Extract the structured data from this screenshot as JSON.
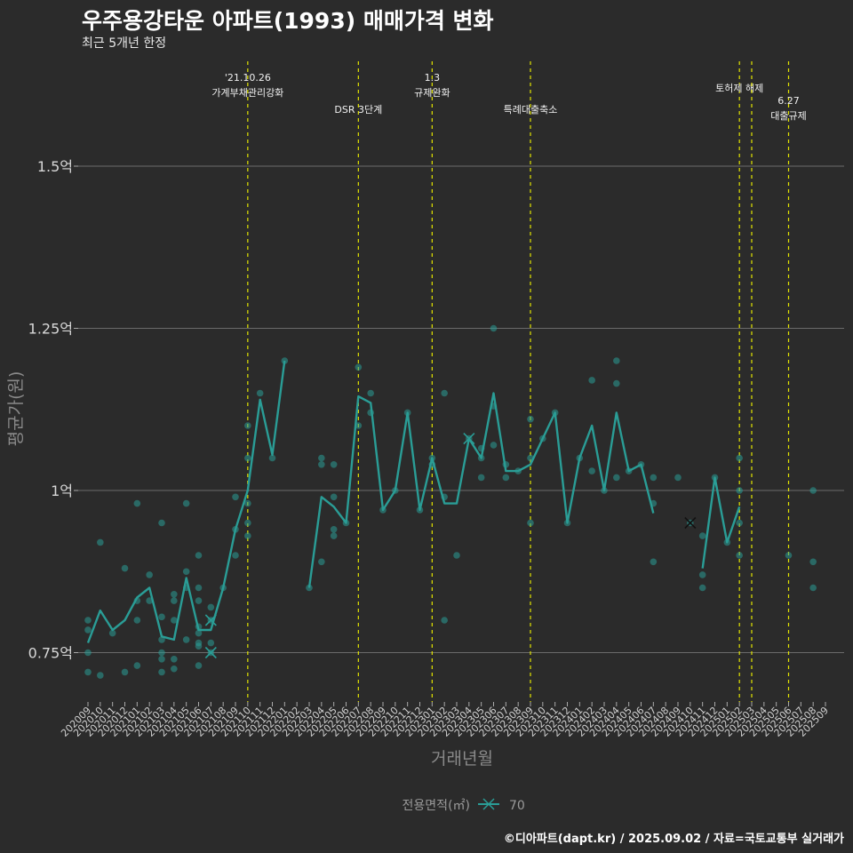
{
  "header": {
    "title": "우주용강타운 아파트(1993) 매매가격 변화",
    "subtitle": "최근 5개년 한정"
  },
  "caption": "©디아파트(dapt.kr) / 2025.09.02 / 자료=국토교통부 실거래가",
  "chart_data": {
    "type": "line",
    "title": "우주용강타운 아파트(1993) 매매가격 변화",
    "subtitle": "최근 5개년 한정",
    "xlabel": "거래년월",
    "ylabel": "평균가(원)",
    "ylim": [
      0.68,
      1.68
    ],
    "y_unit": "억",
    "y_ticks": [
      0.75,
      1.0,
      1.25,
      1.5
    ],
    "y_tick_labels": [
      "0.75억",
      "1억",
      "1.25억",
      "1.5억"
    ],
    "grid": true,
    "legend": {
      "title": "전용면적(㎡)",
      "placement": "bottom",
      "entries": [
        "70"
      ]
    },
    "line_color": "#2a9d96",
    "point_color": "#2a9d96",
    "vline_color": "#e4e600",
    "x_categories": [
      "202009",
      "202010",
      "202011",
      "202012",
      "202101",
      "202102",
      "202103",
      "202104",
      "202105",
      "202106",
      "202107",
      "202108",
      "202109",
      "202110",
      "202111",
      "202112",
      "202201",
      "202202",
      "202203",
      "202204",
      "202205",
      "202206",
      "202207",
      "202208",
      "202209",
      "202210",
      "202211",
      "202212",
      "202301",
      "202302",
      "202303",
      "202304",
      "202305",
      "202306",
      "202307",
      "202308",
      "202309",
      "202310",
      "202311",
      "202312",
      "202401",
      "202402",
      "202403",
      "202404",
      "202405",
      "202406",
      "202407",
      "202408",
      "202409",
      "202410",
      "202411",
      "202412",
      "202501",
      "202502",
      "202503",
      "202504",
      "202505",
      "202506",
      "202507",
      "202508",
      "202509"
    ],
    "x_tick_labels": [
      "202009",
      "202010",
      "202011",
      "202012",
      "202101",
      "202102",
      "202103",
      "202104",
      "202105",
      "202106",
      "202107",
      "202108",
      "202109",
      "202110",
      "202111",
      "202112",
      "202201",
      "202202",
      "202203",
      "202204",
      "202205",
      "202206",
      "202207",
      "202208",
      "202209",
      "202210",
      "202211",
      "202212",
      "202301",
      "202302",
      "202303",
      "202304",
      "202305",
      "202306",
      "202307",
      "202308",
      "202309",
      "202310",
      "202311",
      "202312",
      "202401",
      "202402",
      "202403",
      "202404",
      "202405",
      "202406",
      "202407",
      "202408",
      "202409",
      "202410",
      "202411",
      "202412",
      "202501",
      "202502",
      "202503",
      "202504",
      "202505",
      "202506",
      "202507",
      "202508",
      "202509"
    ],
    "series": [
      {
        "name": "70",
        "line_segments": [
          [
            [
              "202009",
              0.765
            ],
            [
              "202010",
              0.815
            ],
            [
              "202011",
              0.785
            ],
            [
              "202012",
              0.8
            ],
            [
              "202101",
              0.835
            ],
            [
              "202102",
              0.85
            ],
            [
              "202103",
              0.775
            ],
            [
              "202104",
              0.77
            ],
            [
              "202105",
              0.865
            ],
            [
              "202106",
              0.785
            ],
            [
              "202107",
              0.785
            ],
            [
              "202108",
              0.85
            ],
            [
              "202109",
              0.94
            ],
            [
              "202110",
              1.0
            ],
            [
              "202111",
              1.14
            ],
            [
              "202112",
              1.055
            ],
            [
              "202201",
              1.2
            ]
          ],
          [
            [
              "202203",
              0.85
            ],
            [
              "202204",
              0.99
            ],
            [
              "202205",
              0.975
            ],
            [
              "202206",
              0.95
            ],
            [
              "202207",
              1.145
            ],
            [
              "202208",
              1.135
            ],
            [
              "202209",
              0.97
            ],
            [
              "202210",
              1.0
            ],
            [
              "202211",
              1.12
            ],
            [
              "202212",
              0.97
            ],
            [
              "202301",
              1.05
            ],
            [
              "202302",
              0.98
            ],
            [
              "202303",
              0.98
            ],
            [
              "202304",
              1.08
            ],
            [
              "202305",
              1.05
            ],
            [
              "202306",
              1.15
            ],
            [
              "202307",
              1.03
            ],
            [
              "202308",
              1.03
            ],
            [
              "202309",
              1.04
            ],
            [
              "202310",
              1.08
            ],
            [
              "202311",
              1.12
            ],
            [
              "202312",
              0.95
            ],
            [
              "202401",
              1.05
            ],
            [
              "202402",
              1.1
            ],
            [
              "202403",
              1.0
            ],
            [
              "202404",
              1.12
            ],
            [
              "202405",
              1.03
            ],
            [
              "202406",
              1.04
            ],
            [
              "202407",
              0.965
            ]
          ],
          [
            [
              "202411",
              0.88
            ],
            [
              "202412",
              1.02
            ],
            [
              "202501",
              0.92
            ],
            [
              "202502",
              0.975
            ]
          ]
        ],
        "points": [
          [
            "202009",
            0.8
          ],
          [
            "202009",
            0.785
          ],
          [
            "202009",
            0.75
          ],
          [
            "202009",
            0.72
          ],
          [
            "202010",
            0.92
          ],
          [
            "202010",
            0.715
          ],
          [
            "202011",
            0.78
          ],
          [
            "202012",
            0.88
          ],
          [
            "202012",
            0.72
          ],
          [
            "202101",
            0.98
          ],
          [
            "202101",
            0.83
          ],
          [
            "202101",
            0.8
          ],
          [
            "202101",
            0.73
          ],
          [
            "202102",
            0.87
          ],
          [
            "202102",
            0.83
          ],
          [
            "202103",
            0.95
          ],
          [
            "202103",
            0.805
          ],
          [
            "202103",
            0.77
          ],
          [
            "202103",
            0.75
          ],
          [
            "202103",
            0.74
          ],
          [
            "202103",
            0.72
          ],
          [
            "202104",
            0.84
          ],
          [
            "202104",
            0.83
          ],
          [
            "202104",
            0.8
          ],
          [
            "202104",
            0.74
          ],
          [
            "202104",
            0.725
          ],
          [
            "202105",
            0.98
          ],
          [
            "202105",
            0.875
          ],
          [
            "202105",
            0.85
          ],
          [
            "202105",
            0.77
          ],
          [
            "202106",
            0.9
          ],
          [
            "202106",
            0.85
          ],
          [
            "202106",
            0.83
          ],
          [
            "202106",
            0.79
          ],
          [
            "202106",
            0.78
          ],
          [
            "202106",
            0.765
          ],
          [
            "202106",
            0.76
          ],
          [
            "202106",
            0.73
          ],
          [
            "202107",
            0.82
          ],
          [
            "202107",
            0.8
          ],
          [
            "202107",
            0.765
          ],
          [
            "202107",
            0.75
          ],
          [
            "202108",
            0.85
          ],
          [
            "202109",
            0.99
          ],
          [
            "202109",
            0.94
          ],
          [
            "202109",
            0.9
          ],
          [
            "202110",
            1.1
          ],
          [
            "202110",
            1.05
          ],
          [
            "202110",
            0.98
          ],
          [
            "202110",
            0.95
          ],
          [
            "202110",
            0.93
          ],
          [
            "202111",
            1.15
          ],
          [
            "202112",
            1.05
          ],
          [
            "202201",
            1.2
          ],
          [
            "202203",
            0.85
          ],
          [
            "202204",
            1.05
          ],
          [
            "202204",
            1.04
          ],
          [
            "202204",
            0.89
          ],
          [
            "202205",
            1.04
          ],
          [
            "202205",
            0.99
          ],
          [
            "202205",
            0.94
          ],
          [
            "202205",
            0.93
          ],
          [
            "202206",
            0.95
          ],
          [
            "202207",
            1.19
          ],
          [
            "202207",
            1.1
          ],
          [
            "202208",
            1.15
          ],
          [
            "202208",
            1.12
          ],
          [
            "202209",
            0.97
          ],
          [
            "202210",
            1.0
          ],
          [
            "202211",
            1.12
          ],
          [
            "202212",
            0.97
          ],
          [
            "202301",
            1.05
          ],
          [
            "202301",
            1.04
          ],
          [
            "202302",
            1.15
          ],
          [
            "202302",
            0.99
          ],
          [
            "202302",
            0.8
          ],
          [
            "202303",
            0.9
          ],
          [
            "202304",
            1.08
          ],
          [
            "202305",
            1.065
          ],
          [
            "202305",
            1.05
          ],
          [
            "202305",
            1.02
          ],
          [
            "202306",
            1.25
          ],
          [
            "202306",
            1.13
          ],
          [
            "202306",
            1.07
          ],
          [
            "202307",
            1.04
          ],
          [
            "202307",
            1.02
          ],
          [
            "202308",
            1.03
          ],
          [
            "202309",
            1.11
          ],
          [
            "202309",
            1.05
          ],
          [
            "202309",
            0.95
          ],
          [
            "202310",
            1.08
          ],
          [
            "202311",
            1.12
          ],
          [
            "202312",
            0.95
          ],
          [
            "202401",
            1.05
          ],
          [
            "202402",
            1.17
          ],
          [
            "202402",
            1.03
          ],
          [
            "202403",
            1.0
          ],
          [
            "202404",
            1.2
          ],
          [
            "202404",
            1.165
          ],
          [
            "202404",
            1.02
          ],
          [
            "202405",
            1.03
          ],
          [
            "202406",
            1.04
          ],
          [
            "202407",
            1.02
          ],
          [
            "202407",
            0.98
          ],
          [
            "202407",
            0.89
          ],
          [
            "202409",
            1.02
          ],
          [
            "202410",
            0.95
          ],
          [
            "202411",
            0.93
          ],
          [
            "202411",
            0.87
          ],
          [
            "202411",
            0.85
          ],
          [
            "202412",
            1.02
          ],
          [
            "202501",
            0.92
          ],
          [
            "202502",
            1.05
          ],
          [
            "202502",
            1.0
          ],
          [
            "202502",
            0.95
          ],
          [
            "202502",
            0.9
          ],
          [
            "202506",
            0.9
          ],
          [
            "202508",
            1.0
          ],
          [
            "202508",
            0.89
          ],
          [
            "202508",
            0.85
          ]
        ],
        "cross_markers": [
          [
            "202107",
            0.75
          ],
          [
            "202107",
            0.8
          ],
          [
            "202304",
            1.08
          ]
        ],
        "cross_markers_dark": [
          [
            "202410",
            0.95
          ]
        ]
      }
    ],
    "vlines": [
      {
        "x": "202110",
        "lines": [
          "'21.10.26",
          "가계부채관리강화"
        ],
        "row": 0
      },
      {
        "x": "202207",
        "lines": [
          "DSR 3단계"
        ],
        "row": 2
      },
      {
        "x": "202301",
        "lines": [
          "1.3",
          "규제완화"
        ],
        "row": 0
      },
      {
        "x": "202309",
        "lines": [
          "특례대출축소"
        ],
        "row": 2
      },
      {
        "x": "202502",
        "lines": [
          "토허제 해제"
        ],
        "row": 1
      },
      {
        "x": "202503",
        "lines": [],
        "row": 0
      },
      {
        "x": "202506",
        "lines": [
          "6.27",
          "대출규제"
        ],
        "row": 2
      }
    ]
  }
}
